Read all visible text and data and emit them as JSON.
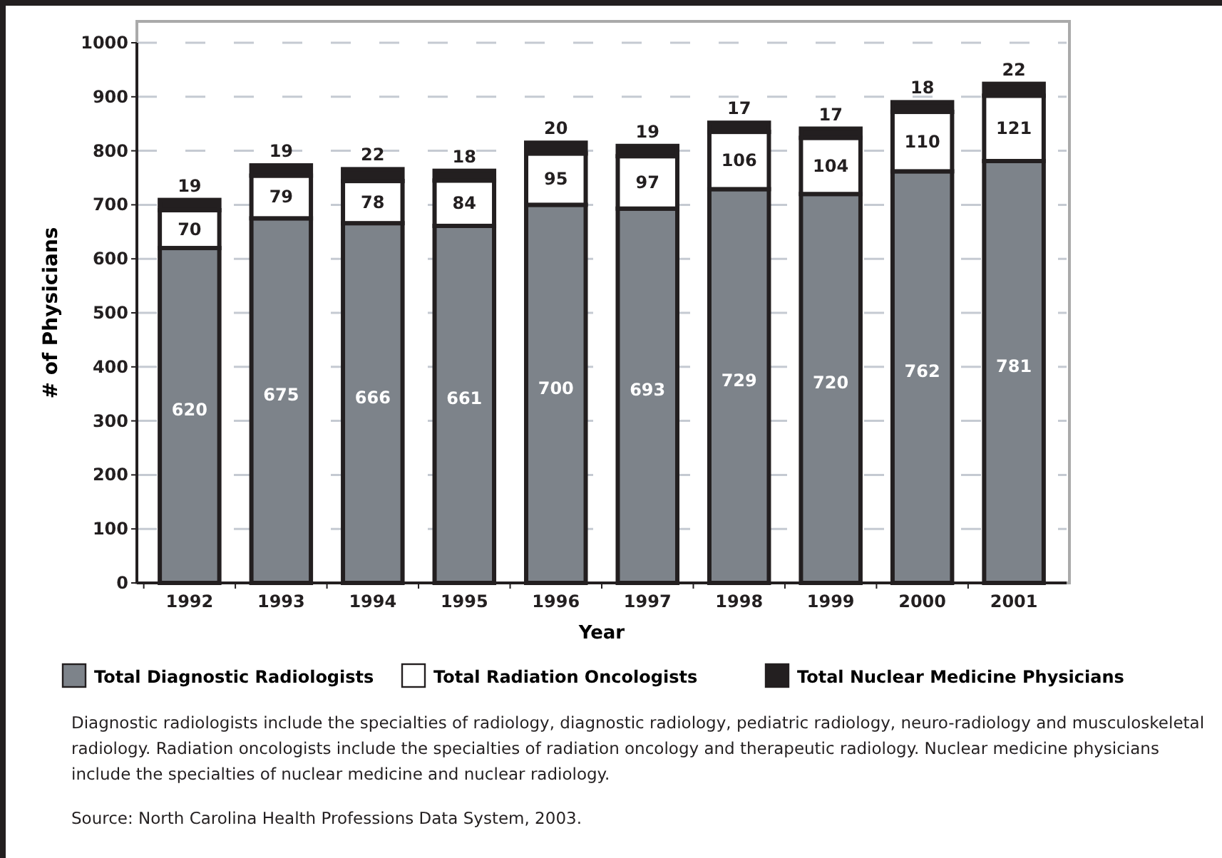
{
  "chart_data": {
    "type": "bar",
    "stacked": true,
    "xlabel": "Year",
    "ylabel": "# of Physicians",
    "categories": [
      "1992",
      "1993",
      "1994",
      "1995",
      "1996",
      "1997",
      "1998",
      "1999",
      "2000",
      "2001"
    ],
    "series": [
      {
        "name": "Total Diagnostic Radiologists",
        "color": "#7d838a",
        "values": [
          620,
          675,
          666,
          661,
          700,
          693,
          729,
          720,
          762,
          781
        ]
      },
      {
        "name": "Total Radiation Oncologists",
        "color": "#ffffff",
        "values": [
          70,
          79,
          78,
          84,
          95,
          97,
          106,
          104,
          110,
          121
        ]
      },
      {
        "name": "Total Nuclear Medicine Physicians",
        "color": "#231f20",
        "values": [
          19,
          19,
          22,
          18,
          20,
          19,
          17,
          17,
          18,
          22
        ]
      }
    ],
    "ylim": [
      0,
      1000
    ],
    "yticks": [
      0,
      100,
      200,
      300,
      400,
      500,
      600,
      700,
      800,
      900,
      1000
    ],
    "grid": "y",
    "legend": "bottom",
    "data_labels": true,
    "annotations": [
      "Diagnostic radiologists include the specialties of radiology, diagnostic radiology, pediatric radiology, neuro-radiology and musculoskeletal radiology.  Radiation oncologists include the specialties of radiation oncology and therapeutic radiology.  Nuclear medicine physicians include the specialties of nuclear medicine and nuclear radiology.",
      "Source:  North Carolina Health Professions Data System, 2003."
    ]
  }
}
